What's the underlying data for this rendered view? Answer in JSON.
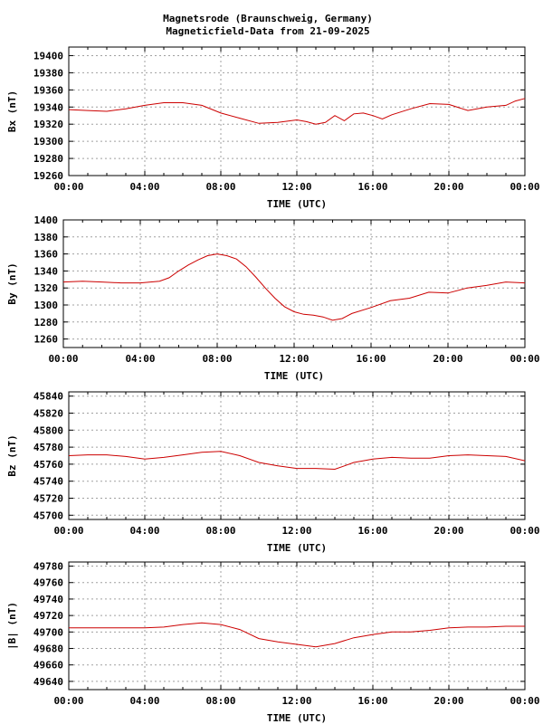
{
  "title": {
    "line1": "Magnetsrode (Braunschweig, Germany)",
    "line2": "Magneticfield-Data from 21-09-2025"
  },
  "colors": {
    "series": "#cc0000",
    "grid": "#a0a0a0",
    "axis": "#000000"
  },
  "chart_data": [
    {
      "type": "line",
      "xlabel": "TIME (UTC)",
      "ylabel": "Bx (nT)",
      "xlim": [
        0,
        24
      ],
      "ylim": [
        19260,
        19410
      ],
      "x_ticks": [
        "00:00",
        "04:00",
        "08:00",
        "12:00",
        "16:00",
        "20:00",
        "00:00"
      ],
      "y_ticks": [
        19260,
        19280,
        19300,
        19320,
        19340,
        19360,
        19380,
        19400
      ],
      "grid": true,
      "series": [
        {
          "x": [
            0,
            1,
            2,
            3,
            4,
            5,
            6,
            7,
            8,
            9,
            10,
            11,
            12,
            12.5,
            13,
            13.5,
            14,
            14.5,
            15,
            15.5,
            16,
            16.5,
            17,
            18,
            19,
            20,
            21,
            22,
            23,
            23.5,
            24
          ],
          "values": [
            19337,
            19336,
            19335,
            19338,
            19342,
            19345,
            19345,
            19342,
            19333,
            19327,
            19321,
            19322,
            19325,
            19323,
            19320,
            19322,
            19330,
            19324,
            19332,
            19333,
            19330,
            19326,
            19331,
            19338,
            19344,
            19343,
            19336,
            19340,
            19342,
            19347,
            19350
          ]
        }
      ]
    },
    {
      "type": "line",
      "xlabel": "TIME (UTC)",
      "ylabel": "By (nT)",
      "xlim": [
        0,
        24
      ],
      "ylim": [
        1250,
        1400
      ],
      "x_ticks": [
        "00:00",
        "04:00",
        "08:00",
        "12:00",
        "16:00",
        "20:00",
        "00:00"
      ],
      "y_ticks": [
        1260,
        1280,
        1300,
        1320,
        1340,
        1360,
        1380,
        1400
      ],
      "grid": true,
      "series": [
        {
          "x": [
            0,
            1,
            2,
            3,
            4,
            5,
            5.5,
            6,
            6.5,
            7,
            7.5,
            8,
            8.5,
            9,
            9.5,
            10,
            10.5,
            11,
            11.5,
            12,
            12.5,
            13,
            13.5,
            14,
            14.5,
            15,
            16,
            17,
            18,
            19,
            20,
            21,
            22,
            23,
            24
          ],
          "values": [
            1327,
            1328,
            1327,
            1326,
            1326,
            1328,
            1332,
            1340,
            1347,
            1353,
            1358,
            1360,
            1358,
            1354,
            1345,
            1333,
            1320,
            1308,
            1298,
            1292,
            1289,
            1288,
            1286,
            1282,
            1284,
            1290,
            1297,
            1305,
            1308,
            1315,
            1314,
            1320,
            1323,
            1327,
            1326
          ]
        }
      ]
    },
    {
      "type": "line",
      "xlabel": "TIME (UTC)",
      "ylabel": "Bz (nT)",
      "xlim": [
        0,
        24
      ],
      "ylim": [
        45695,
        45845
      ],
      "x_ticks": [
        "00:00",
        "04:00",
        "08:00",
        "12:00",
        "16:00",
        "20:00",
        "00:00"
      ],
      "y_ticks": [
        45700,
        45720,
        45740,
        45760,
        45780,
        45800,
        45820,
        45840
      ],
      "grid": true,
      "series": [
        {
          "x": [
            0,
            1,
            2,
            3,
            4,
            5,
            6,
            7,
            8,
            9,
            10,
            11,
            12,
            13,
            14,
            14.5,
            15,
            16,
            17,
            18,
            19,
            20,
            21,
            22,
            23,
            24
          ],
          "values": [
            45770,
            45771,
            45771,
            45769,
            45766,
            45768,
            45771,
            45774,
            45775,
            45770,
            45762,
            45758,
            45755,
            45755,
            45754,
            45758,
            45762,
            45766,
            45768,
            45767,
            45767,
            45770,
            45771,
            45770,
            45769,
            45764
          ]
        }
      ]
    },
    {
      "type": "line",
      "xlabel": "TIME (UTC)",
      "ylabel": "|B| (nT)",
      "xlim": [
        0,
        24
      ],
      "ylim": [
        49630,
        49785
      ],
      "x_ticks": [
        "00:00",
        "04:00",
        "08:00",
        "12:00",
        "16:00",
        "20:00",
        "00:00"
      ],
      "y_ticks": [
        49640,
        49660,
        49680,
        49700,
        49720,
        49740,
        49760,
        49780
      ],
      "grid": true,
      "series": [
        {
          "x": [
            0,
            1,
            2,
            3,
            4,
            5,
            6,
            7,
            8,
            9,
            10,
            11,
            12,
            13,
            14,
            15,
            16,
            17,
            18,
            19,
            20,
            21,
            22,
            23,
            24
          ],
          "values": [
            49705,
            49705,
            49705,
            49705,
            49705,
            49706,
            49709,
            49711,
            49709,
            49703,
            49692,
            49688,
            49685,
            49682,
            49686,
            49693,
            49697,
            49700,
            49700,
            49702,
            49705,
            49706,
            49706,
            49707,
            49707
          ]
        }
      ]
    }
  ]
}
